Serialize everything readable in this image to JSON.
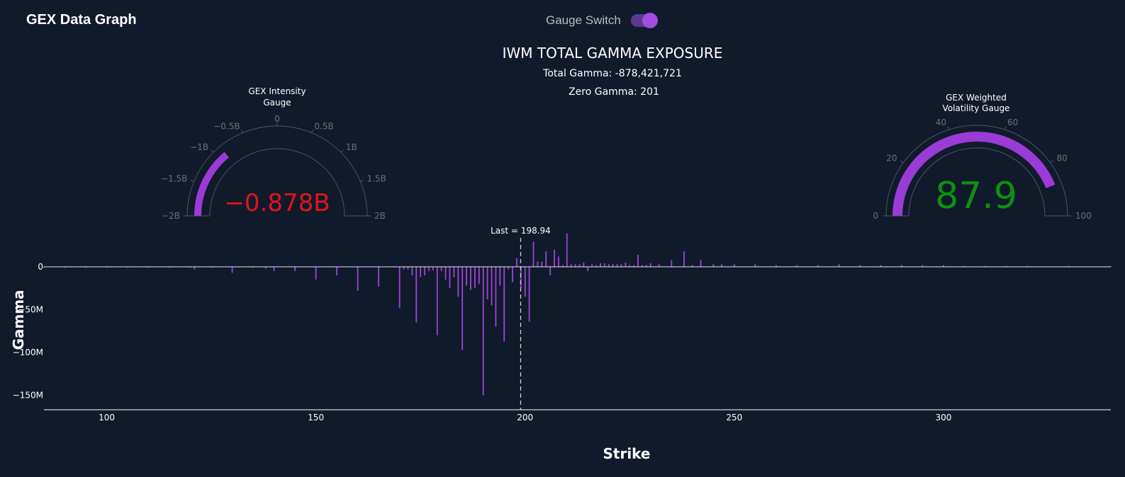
{
  "app": {
    "title": "GEX Data Graph"
  },
  "gauge_switch": {
    "label": "Gauge Switch",
    "on": true
  },
  "header": {
    "title": "IWM TOTAL GAMMA EXPOSURE",
    "total_gamma": "Total Gamma: -878,421,721",
    "zero_gamma": "Zero Gamma: 201"
  },
  "gauges": {
    "intensity": {
      "title_line1": "GEX Intensity",
      "title_line2": "Gauge",
      "value": -0.878,
      "value_label": "−0.878B",
      "min": -2,
      "max": 2,
      "ticks": [
        {
          "v": -2,
          "label": "−2B"
        },
        {
          "v": -1.5,
          "label": "−1.5B"
        },
        {
          "v": -1,
          "label": "−1B"
        },
        {
          "v": -0.5,
          "label": "−0.5B"
        },
        {
          "v": 0,
          "label": "0"
        },
        {
          "v": 0.5,
          "label": "0.5B"
        },
        {
          "v": 1,
          "label": "1B"
        },
        {
          "v": 1.5,
          "label": "1.5B"
        },
        {
          "v": 2,
          "label": "2B"
        }
      ],
      "value_color": "#e0151b",
      "bar_color": "#9b3bd6"
    },
    "volatility": {
      "title_line1": "GEX Weighted",
      "title_line2": "Volatility Gauge",
      "value": 87.9,
      "value_label": "87.9",
      "min": 0,
      "max": 100,
      "ticks": [
        {
          "v": 0,
          "label": "0"
        },
        {
          "v": 20,
          "label": "20"
        },
        {
          "v": 40,
          "label": "40"
        },
        {
          "v": 60,
          "label": "60"
        },
        {
          "v": 80,
          "label": "80"
        },
        {
          "v": 100,
          "label": "100"
        }
      ],
      "value_color": "#0d9112",
      "bar_color": "#9b3bd6"
    }
  },
  "chart_data": {
    "type": "bar",
    "title": "IWM TOTAL GAMMA EXPOSURE",
    "xlabel": "Strike",
    "ylabel": "Gamma",
    "xlim": [
      85,
      340
    ],
    "ylim": [
      -165,
      55
    ],
    "x_ticks": [
      {
        "v": 100,
        "label": "100"
      },
      {
        "v": 150,
        "label": "150"
      },
      {
        "v": 200,
        "label": "200"
      },
      {
        "v": 250,
        "label": "250"
      },
      {
        "v": 300,
        "label": "300"
      }
    ],
    "y_ticks": [
      {
        "v": 0,
        "label": "0"
      },
      {
        "v": -50,
        "label": "−50M"
      },
      {
        "v": -100,
        "label": "−100M"
      },
      {
        "v": -150,
        "label": "−150M"
      }
    ],
    "bar_color": "#9b45d8",
    "last_price": 198.94,
    "last_label": "Last = 198.94",
    "unit": "millions",
    "x": [
      85,
      90,
      95,
      100,
      105,
      110,
      115,
      120,
      121,
      125,
      130,
      135,
      138,
      140,
      145,
      150,
      155,
      160,
      165,
      170,
      171,
      172,
      173,
      174,
      175,
      176,
      177,
      178,
      179,
      180,
      181,
      182,
      183,
      184,
      185,
      186,
      187,
      188,
      189,
      190,
      191,
      192,
      193,
      194,
      195,
      196,
      197,
      198,
      199,
      200,
      201,
      202,
      203,
      204,
      205,
      206,
      207,
      208,
      209,
      210,
      211,
      212,
      213,
      214,
      215,
      216,
      217,
      218,
      219,
      220,
      221,
      222,
      223,
      224,
      225,
      226,
      227,
      228,
      229,
      230,
      232,
      235,
      238,
      240,
      242,
      245,
      247,
      250,
      255,
      260,
      265,
      270,
      275,
      280,
      285,
      290,
      295,
      300,
      305,
      310,
      315,
      320,
      330,
      340
    ],
    "values": [
      -1,
      -1,
      -1,
      -1,
      -1,
      -1,
      -1,
      -1,
      -3,
      -1,
      -7,
      -1,
      -2,
      -5,
      -5,
      -15,
      -10,
      -28,
      -23,
      -48,
      -3,
      -3,
      -10,
      -65,
      -12,
      -10,
      -5,
      -4,
      -80,
      -5,
      -15,
      -25,
      -12,
      -35,
      -97,
      -22,
      -27,
      -25,
      -20,
      -150,
      -38,
      -45,
      -70,
      -22,
      -87,
      -3,
      -18,
      10,
      -25,
      -35,
      -64,
      29,
      6,
      6,
      18,
      -10,
      20,
      12,
      2,
      39,
      3,
      3,
      3,
      5,
      -5,
      3,
      2,
      4,
      4,
      3,
      3,
      3,
      3,
      5,
      2,
      2,
      14,
      2,
      2,
      4,
      3,
      8,
      18,
      2,
      8,
      3,
      3,
      3,
      3,
      2,
      2,
      2,
      3,
      2,
      2,
      2,
      2,
      2,
      1,
      1,
      1,
      1,
      1,
      1
    ]
  }
}
